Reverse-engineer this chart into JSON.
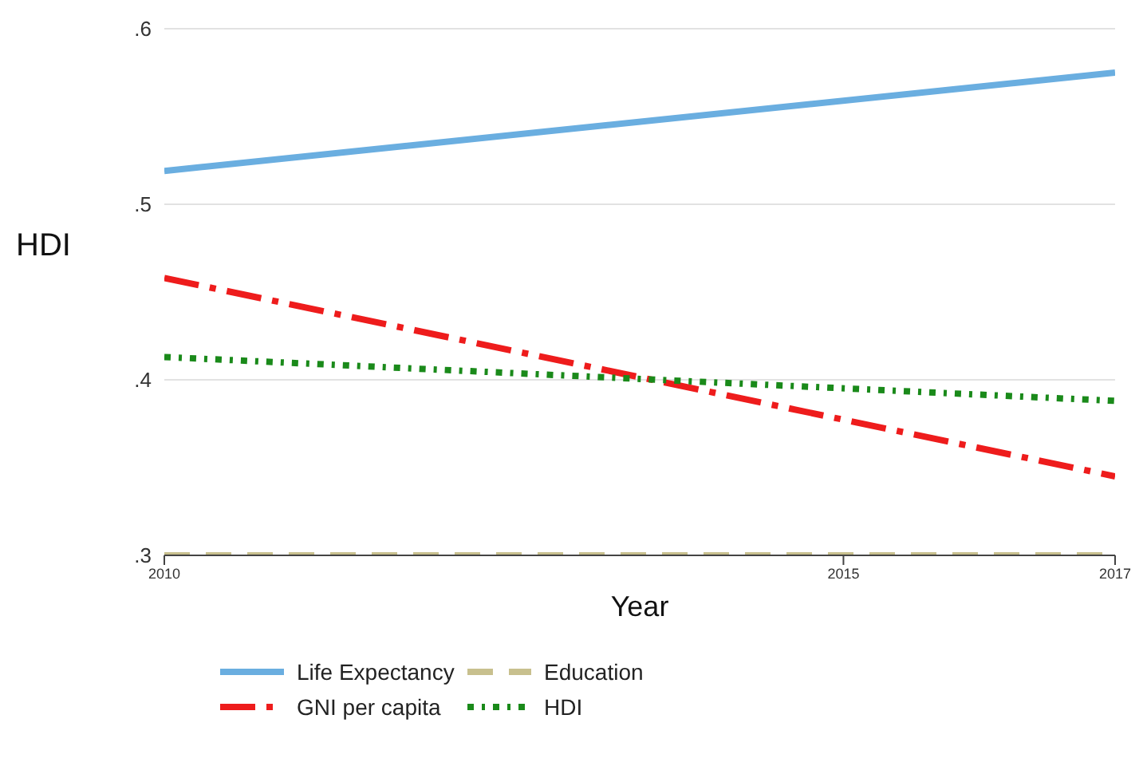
{
  "chart_data": {
    "type": "line",
    "xlabel": "Year",
    "ylabel": "HDI",
    "x": [
      2010,
      2017
    ],
    "xlim": [
      2010,
      2017
    ],
    "xticks": [
      2010,
      2015,
      2017
    ],
    "ylim": [
      0.3,
      0.6
    ],
    "yticks": [
      {
        "value": 0.3,
        "label": ".3"
      },
      {
        "value": 0.4,
        "label": ".4"
      },
      {
        "value": 0.5,
        "label": ".5"
      },
      {
        "value": 0.6,
        "label": ".6"
      }
    ],
    "grid": "y",
    "legend": "bottom",
    "marker": "none",
    "series": [
      {
        "name": "Life Expectancy",
        "color": "#6aaee0",
        "values": [
          0.519,
          0.575
        ],
        "line_style": "solid"
      },
      {
        "name": "Education",
        "color": "#c8c08e",
        "values": [
          0.3,
          0.3
        ],
        "line_style": "dashed"
      },
      {
        "name": "GNI per capita",
        "color": "#ee1c1c",
        "values": [
          0.458,
          0.345
        ],
        "line_style": "dashed"
      },
      {
        "name": "HDI",
        "color": "#1a8a1a",
        "values": [
          0.413,
          0.388
        ],
        "line_style": "dotted"
      }
    ]
  }
}
